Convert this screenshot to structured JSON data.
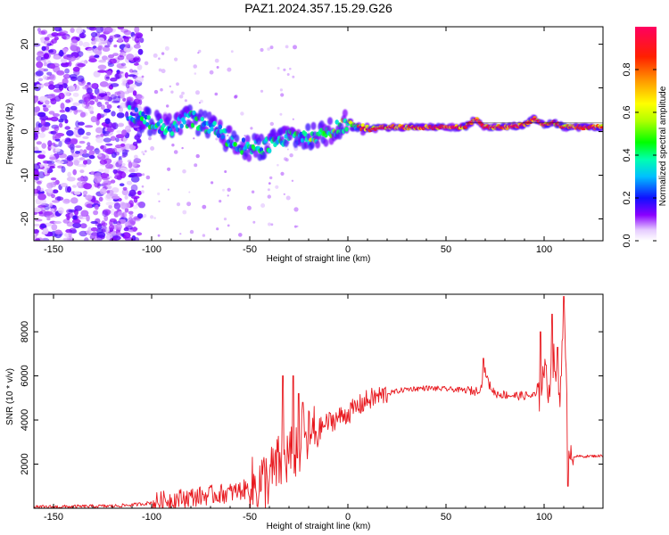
{
  "title": "PAZ1.2024.357.15.29.G26",
  "colors": {
    "snr_line": "#e8191f",
    "spectrum_violet": "#7a00ff",
    "spectrum_ridge": "#ff1a3c",
    "axes": "#000000"
  },
  "spectrogram": {
    "xlabel": "Height of straight line (km)",
    "ylabel": "Frequency (Hz)",
    "xlim": [
      -160,
      130
    ],
    "ylim": [
      -25,
      24
    ],
    "xticks": [
      "-150",
      "-100",
      "-50",
      "0",
      "50",
      "100"
    ],
    "yticks": [
      "20",
      "10",
      "0",
      "-10",
      "-20"
    ],
    "colorbar": {
      "label": "Normalized spectral amplitude",
      "ticks": [
        "0.0",
        "0.2",
        "0.4",
        "0.6",
        "0.8"
      ],
      "range": [
        0,
        1
      ]
    }
  },
  "snr": {
    "xlabel": "Height of straight line (km)",
    "ylabel": "SNR (10 * v/v)",
    "xticks": [
      "-150",
      "-100",
      "-50",
      "0",
      "50",
      "100"
    ],
    "yticks": [
      "2000",
      "4000",
      "6000",
      "8000"
    ]
  },
  "chart_data": [
    {
      "type": "heatmap",
      "title": "PAZ1.2024.357.15.29.G26",
      "xlabel": "Height of straight line (km)",
      "ylabel": "Frequency (Hz)",
      "xlim": [
        -160,
        130
      ],
      "ylim": [
        -25,
        24
      ],
      "colorbar_label": "Normalized spectral amplitude",
      "colorbar_range": [
        0,
        1
      ],
      "ridge": {
        "x": [
          -110,
          -100,
          -90,
          -80,
          -70,
          -60,
          -50,
          -40,
          -30,
          -20,
          -10,
          0,
          10,
          20,
          40,
          60,
          65,
          70,
          80,
          90,
          95,
          100,
          105,
          110,
          130
        ],
        "y": [
          4,
          2,
          1,
          3,
          1,
          -2,
          -4,
          -3,
          -1,
          -1.5,
          0,
          2,
          0.5,
          1,
          1,
          1,
          3,
          1,
          1,
          1.5,
          3,
          1.5,
          2,
          1,
          1
        ]
      },
      "noise_region_x": [
        -160,
        -105
      ],
      "noise_amplitude": 0.2
    },
    {
      "type": "line",
      "xlabel": "Height of straight line (km)",
      "ylabel": "SNR (10 * v/v)",
      "xlim": [
        -160,
        130
      ],
      "ylim": [
        0,
        9700
      ],
      "series": [
        {
          "x": [
            -160,
            -120,
            -110,
            -100,
            -90,
            -80,
            -70,
            -60,
            -50,
            -40,
            -35,
            -30,
            -25,
            -20,
            -10,
            0,
            10,
            20,
            30,
            40,
            50,
            60,
            65,
            68,
            70,
            72,
            75,
            80,
            85,
            90,
            95,
            98,
            100,
            102,
            105,
            108,
            110,
            112,
            114,
            116,
            120,
            130
          ],
          "y": [
            50,
            100,
            150,
            250,
            400,
            500,
            600,
            700,
            900,
            1400,
            2000,
            2400,
            2800,
            3200,
            3900,
            4300,
            4900,
            5200,
            5400,
            5450,
            5400,
            5350,
            5300,
            5500,
            6200,
            5600,
            5200,
            5150,
            5100,
            5100,
            5100,
            5000,
            6500,
            5300,
            6800,
            4800,
            9500,
            3500,
            2400,
            2350,
            2350,
            2380
          ]
        }
      ]
    }
  ]
}
